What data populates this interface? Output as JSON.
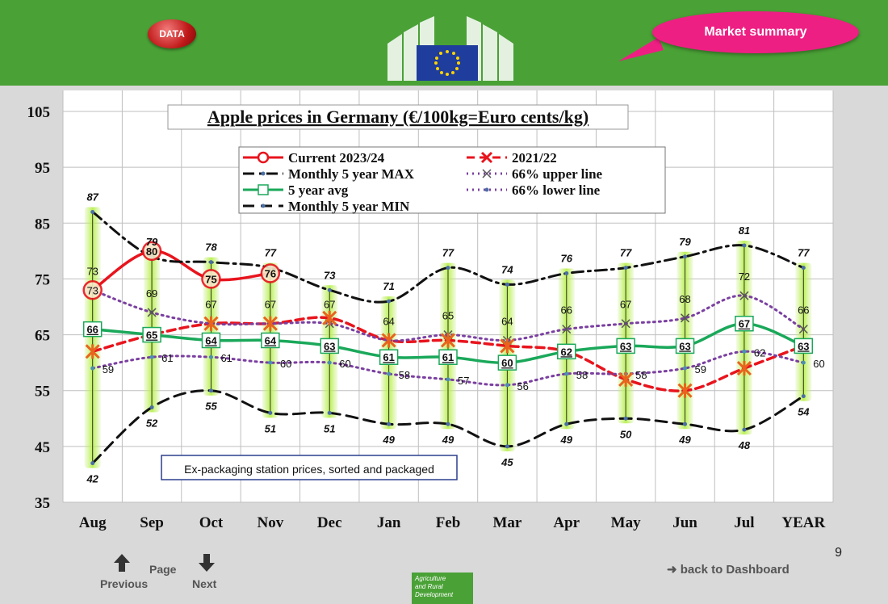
{
  "header": {
    "data_button": "DATA",
    "market_summary": "Market summary"
  },
  "nav": {
    "previous": "Previous",
    "page": "Page",
    "next": "Next",
    "back": "back to Dashboard",
    "page_number": "9"
  },
  "footer": {
    "line1": "Agriculture",
    "line2": "and Rural",
    "line3": "Development"
  },
  "chart_data": {
    "type": "line",
    "title": "Apple prices in Germany (€/100kg=Euro cents/kg)",
    "note": "Ex-packaging station prices, sorted and packaged",
    "categories": [
      "Aug",
      "Sep",
      "Oct",
      "Nov",
      "Dec",
      "Jan",
      "Feb",
      "Mar",
      "Apr",
      "May",
      "Jun",
      "Jul",
      "YEAR"
    ],
    "ylim": [
      35,
      105
    ],
    "yticks": [
      35,
      45,
      55,
      65,
      75,
      85,
      95,
      105
    ],
    "grid": true,
    "series": [
      {
        "name": "Current 2023/24",
        "color": "#e8141d",
        "values": [
          73,
          80,
          75,
          76,
          null,
          null,
          null,
          null,
          null,
          null,
          null,
          null,
          null
        ]
      },
      {
        "name": "2021/22",
        "color": "#e8141d",
        "values": [
          62,
          65,
          67,
          67,
          68,
          64,
          64,
          63,
          62,
          57,
          55,
          59,
          63
        ]
      },
      {
        "name": "Monthly 5 year MAX",
        "color": "#111111",
        "values": [
          87,
          79,
          78,
          77,
          73,
          71,
          77,
          74,
          76,
          77,
          79,
          81,
          77
        ]
      },
      {
        "name": "66% upper line",
        "color": "#7a3fa0",
        "values": [
          73,
          69,
          67,
          67,
          67,
          64,
          65,
          64,
          66,
          67,
          68,
          72,
          66
        ]
      },
      {
        "name": "5 year avg",
        "color": "#1aa85a",
        "values": [
          66,
          65,
          64,
          64,
          63,
          61,
          61,
          60,
          62,
          63,
          63,
          67,
          63
        ]
      },
      {
        "name": "66% lower line",
        "color": "#7a3fa0",
        "values": [
          59,
          61,
          61,
          60,
          60,
          58,
          57,
          56,
          58,
          58,
          59,
          62,
          60
        ]
      },
      {
        "name": "Monthly 5 year MIN",
        "color": "#111111",
        "values": [
          42,
          52,
          55,
          51,
          51,
          49,
          49,
          45,
          49,
          50,
          49,
          48,
          54
        ]
      }
    ]
  }
}
